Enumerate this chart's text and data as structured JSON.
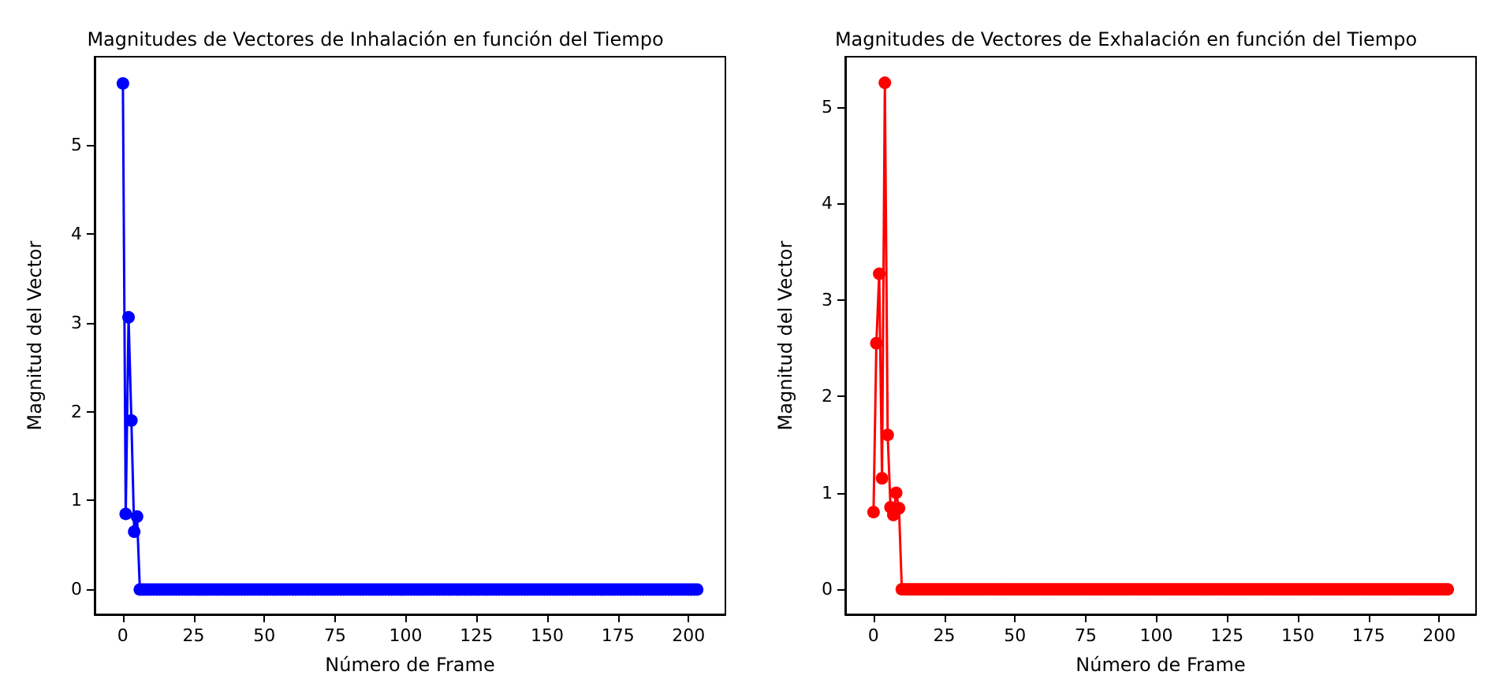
{
  "chart_data": [
    {
      "type": "line",
      "title": "Magnitudes de Vectores de Inhalación en función del Tiempo",
      "xlabel": "Número de Frame",
      "ylabel": "Magnitud del Vector",
      "marker": "circle",
      "line_style": "solid",
      "xlim": [
        -10,
        213
      ],
      "xticks": [
        0,
        25,
        50,
        75,
        100,
        125,
        150,
        175,
        200
      ],
      "ylim": [
        -0.28,
        5.99
      ],
      "yticks": [
        0,
        1,
        2,
        3,
        4,
        5
      ],
      "x": [
        0,
        1,
        2,
        3,
        4,
        5,
        6,
        7,
        8,
        9,
        10,
        11,
        12,
        13,
        14,
        15,
        16,
        17,
        18,
        19,
        20,
        21,
        22,
        23,
        24,
        25,
        26,
        27,
        28,
        29,
        30,
        31,
        32,
        33,
        34,
        35,
        36,
        37,
        38,
        39,
        40,
        41,
        42,
        43,
        44,
        45,
        46,
        47,
        48,
        49,
        50,
        51,
        52,
        53,
        54,
        55,
        56,
        57,
        58,
        59,
        60,
        61,
        62,
        63,
        64,
        65,
        66,
        67,
        68,
        69,
        70,
        71,
        72,
        73,
        74,
        75,
        76,
        77,
        78,
        79,
        80,
        81,
        82,
        83,
        84,
        85,
        86,
        87,
        88,
        89,
        90,
        91,
        92,
        93,
        94,
        95,
        96,
        97,
        98,
        99,
        100,
        101,
        102,
        103,
        104,
        105,
        106,
        107,
        108,
        109,
        110,
        111,
        112,
        113,
        114,
        115,
        116,
        117,
        118,
        119,
        120,
        121,
        122,
        123,
        124,
        125,
        126,
        127,
        128,
        129,
        130,
        131,
        132,
        133,
        134,
        135,
        136,
        137,
        138,
        139,
        140,
        141,
        142,
        143,
        144,
        145,
        146,
        147,
        148,
        149,
        150,
        151,
        152,
        153,
        154,
        155,
        156,
        157,
        158,
        159,
        160,
        161,
        162,
        163,
        164,
        165,
        166,
        167,
        168,
        169,
        170,
        171,
        172,
        173,
        174,
        175,
        176,
        177,
        178,
        179,
        180,
        181,
        182,
        183,
        184,
        185,
        186,
        187,
        188,
        189,
        190,
        191,
        192,
        193,
        194,
        195,
        196,
        197,
        198,
        199,
        200,
        201,
        202,
        203
      ],
      "series": [
        {
          "color": "#0000ff",
          "values": [
            5.69,
            0.85,
            3.06,
            1.9,
            0.65,
            0.82,
            0,
            0,
            0,
            0,
            0,
            0,
            0,
            0,
            0,
            0,
            0,
            0,
            0,
            0,
            0,
            0,
            0,
            0,
            0,
            0,
            0,
            0,
            0,
            0,
            0,
            0,
            0,
            0,
            0,
            0,
            0,
            0,
            0,
            0,
            0,
            0,
            0,
            0,
            0,
            0,
            0,
            0,
            0,
            0,
            0,
            0,
            0,
            0,
            0,
            0,
            0,
            0,
            0,
            0,
            0,
            0,
            0,
            0,
            0,
            0,
            0,
            0,
            0,
            0,
            0,
            0,
            0,
            0,
            0,
            0,
            0,
            0,
            0,
            0,
            0,
            0,
            0,
            0,
            0,
            0,
            0,
            0,
            0,
            0,
            0,
            0,
            0,
            0,
            0,
            0,
            0,
            0,
            0,
            0,
            0,
            0,
            0,
            0,
            0,
            0,
            0,
            0,
            0,
            0,
            0,
            0,
            0,
            0,
            0,
            0,
            0,
            0,
            0,
            0,
            0,
            0,
            0,
            0,
            0,
            0,
            0,
            0,
            0,
            0,
            0,
            0,
            0,
            0,
            0,
            0,
            0,
            0,
            0,
            0,
            0,
            0,
            0,
            0,
            0,
            0,
            0,
            0,
            0,
            0,
            0,
            0,
            0,
            0,
            0,
            0,
            0,
            0,
            0,
            0,
            0,
            0,
            0,
            0,
            0,
            0,
            0,
            0,
            0,
            0,
            0,
            0,
            0,
            0,
            0,
            0,
            0,
            0,
            0,
            0,
            0,
            0,
            0,
            0,
            0,
            0,
            0,
            0,
            0,
            0,
            0,
            0,
            0,
            0,
            0,
            0,
            0,
            0,
            0,
            0,
            0,
            0,
            0,
            0
          ]
        }
      ]
    },
    {
      "type": "line",
      "title": "Magnitudes de Vectores de Exhalación en función del Tiempo",
      "xlabel": "Número de Frame",
      "ylabel": "Magnitud del Vector",
      "marker": "circle",
      "line_style": "solid",
      "xlim": [
        -10,
        213
      ],
      "xticks": [
        0,
        25,
        50,
        75,
        100,
        125,
        150,
        175,
        200
      ],
      "ylim": [
        -0.26,
        5.52
      ],
      "yticks": [
        0,
        1,
        2,
        3,
        4,
        5
      ],
      "x": [
        0,
        1,
        2,
        3,
        4,
        5,
        6,
        7,
        8,
        9,
        10,
        11,
        12,
        13,
        14,
        15,
        16,
        17,
        18,
        19,
        20,
        21,
        22,
        23,
        24,
        25,
        26,
        27,
        28,
        29,
        30,
        31,
        32,
        33,
        34,
        35,
        36,
        37,
        38,
        39,
        40,
        41,
        42,
        43,
        44,
        45,
        46,
        47,
        48,
        49,
        50,
        51,
        52,
        53,
        54,
        55,
        56,
        57,
        58,
        59,
        60,
        61,
        62,
        63,
        64,
        65,
        66,
        67,
        68,
        69,
        70,
        71,
        72,
        73,
        74,
        75,
        76,
        77,
        78,
        79,
        80,
        81,
        82,
        83,
        84,
        85,
        86,
        87,
        88,
        89,
        90,
        91,
        92,
        93,
        94,
        95,
        96,
        97,
        98,
        99,
        100,
        101,
        102,
        103,
        104,
        105,
        106,
        107,
        108,
        109,
        110,
        111,
        112,
        113,
        114,
        115,
        116,
        117,
        118,
        119,
        120,
        121,
        122,
        123,
        124,
        125,
        126,
        127,
        128,
        129,
        130,
        131,
        132,
        133,
        134,
        135,
        136,
        137,
        138,
        139,
        140,
        141,
        142,
        143,
        144,
        145,
        146,
        147,
        148,
        149,
        150,
        151,
        152,
        153,
        154,
        155,
        156,
        157,
        158,
        159,
        160,
        161,
        162,
        163,
        164,
        165,
        166,
        167,
        168,
        169,
        170,
        171,
        172,
        173,
        174,
        175,
        176,
        177,
        178,
        179,
        180,
        181,
        182,
        183,
        184,
        185,
        186,
        187,
        188,
        189,
        190,
        191,
        192,
        193,
        194,
        195,
        196,
        197,
        198,
        199,
        200,
        201,
        202,
        203
      ],
      "series": [
        {
          "color": "#ff0000",
          "values": [
            0.8,
            2.55,
            3.27,
            1.15,
            5.25,
            1.6,
            0.85,
            0.77,
            1.0,
            0.84,
            0,
            0,
            0,
            0,
            0,
            0,
            0,
            0,
            0,
            0,
            0,
            0,
            0,
            0,
            0,
            0,
            0,
            0,
            0,
            0,
            0,
            0,
            0,
            0,
            0,
            0,
            0,
            0,
            0,
            0,
            0,
            0,
            0,
            0,
            0,
            0,
            0,
            0,
            0,
            0,
            0,
            0,
            0,
            0,
            0,
            0,
            0,
            0,
            0,
            0,
            0,
            0,
            0,
            0,
            0,
            0,
            0,
            0,
            0,
            0,
            0,
            0,
            0,
            0,
            0,
            0,
            0,
            0,
            0,
            0,
            0,
            0,
            0,
            0,
            0,
            0,
            0,
            0,
            0,
            0,
            0,
            0,
            0,
            0,
            0,
            0,
            0,
            0,
            0,
            0,
            0,
            0,
            0,
            0,
            0,
            0,
            0,
            0,
            0,
            0,
            0,
            0,
            0,
            0,
            0,
            0,
            0,
            0,
            0,
            0,
            0,
            0,
            0,
            0,
            0,
            0,
            0,
            0,
            0,
            0,
            0,
            0,
            0,
            0,
            0,
            0,
            0,
            0,
            0,
            0,
            0,
            0,
            0,
            0,
            0,
            0,
            0,
            0,
            0,
            0,
            0,
            0,
            0,
            0,
            0,
            0,
            0,
            0,
            0,
            0,
            0,
            0,
            0,
            0,
            0,
            0,
            0,
            0,
            0,
            0,
            0,
            0,
            0,
            0,
            0,
            0,
            0,
            0,
            0,
            0,
            0,
            0,
            0,
            0,
            0,
            0,
            0,
            0,
            0,
            0,
            0,
            0,
            0,
            0,
            0,
            0,
            0,
            0,
            0,
            0,
            0,
            0,
            0,
            0
          ]
        }
      ]
    }
  ]
}
